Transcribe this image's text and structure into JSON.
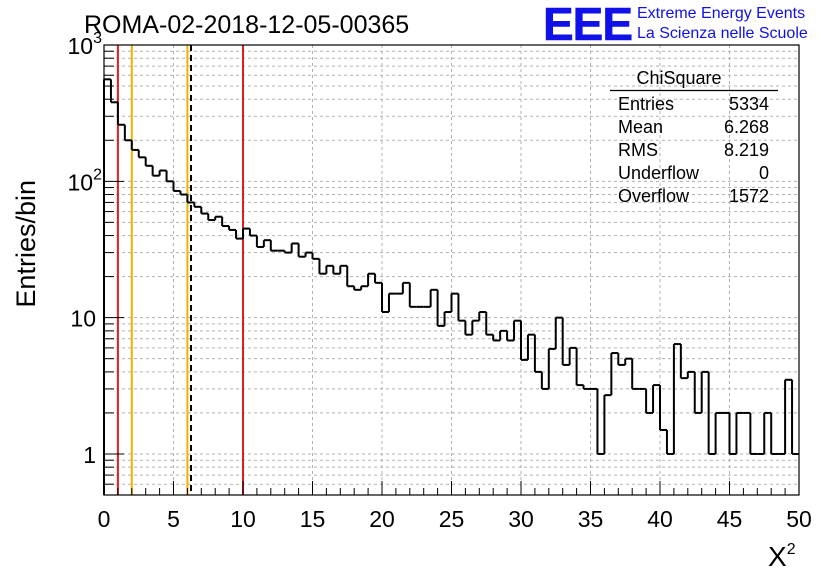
{
  "chart_data": {
    "type": "histogram",
    "title": "ROMA-02-2018-12-05-00365",
    "xlabel": "X",
    "xlabel_superscript": "2",
    "ylabel": "Entries/bin",
    "xlim": [
      0,
      50
    ],
    "ylim": [
      0.5,
      1000
    ],
    "yscale": "log",
    "grid": true,
    "bin_width": 0.5,
    "x_ticks": [
      "0",
      "5",
      "10",
      "15",
      "20",
      "25",
      "30",
      "35",
      "40",
      "45",
      "50"
    ],
    "y_ticks": [
      {
        "value": 1,
        "label": "1"
      },
      {
        "value": 10,
        "label": "10"
      },
      {
        "value": 100,
        "label": "10",
        "exp": "2"
      },
      {
        "value": 1000,
        "label": "10",
        "exp": "3"
      }
    ],
    "values": [
      560,
      380,
      260,
      200,
      170,
      150,
      130,
      110,
      120,
      100,
      85,
      80,
      70,
      65,
      58,
      52,
      55,
      47,
      44,
      38,
      45,
      40,
      33,
      37,
      31,
      31,
      30,
      35,
      28,
      30,
      27,
      21,
      24,
      21,
      24,
      17,
      16,
      17,
      21,
      18,
      11,
      15,
      15,
      18,
      12,
      12,
      12,
      16,
      8.7,
      11,
      15,
      9.5,
      7.5,
      9.5,
      11,
      7.5,
      6.8,
      8,
      6.8,
      9.5,
      4.9,
      7.5,
      4,
      3,
      5.9,
      10,
      4.5,
      6,
      3.2,
      3,
      3,
      1,
      2.7,
      5.5,
      4.5,
      5,
      3,
      3,
      2,
      3.2,
      1.5,
      1,
      6.4,
      3.6,
      4,
      2,
      4,
      1,
      2,
      2,
      1,
      2,
      2,
      1,
      1,
      2,
      1,
      1,
      3.5,
      1
    ],
    "reference_lines": [
      {
        "x": 1,
        "color": "#e02020",
        "style": "solid"
      },
      {
        "x": 2,
        "color": "#f0b400",
        "style": "solid"
      },
      {
        "x": 6,
        "color": "#f0b400",
        "style": "solid"
      },
      {
        "x": 6.26,
        "color": "#000000",
        "style": "dashed"
      },
      {
        "x": 10,
        "color": "#e02020",
        "style": "solid"
      }
    ],
    "stats_box": {
      "title": "ChiSquare",
      "rows": [
        {
          "label": "Entries",
          "value": "5334"
        },
        {
          "label": "Mean",
          "value": "6.268"
        },
        {
          "label": "RMS",
          "value": "8.219"
        },
        {
          "label": "Underflow",
          "value": "0"
        },
        {
          "label": "Overflow",
          "value": "1572"
        }
      ]
    }
  },
  "logo": {
    "letters": "EEE",
    "line1": "Extreme Energy Events",
    "line2": "La Scienza nelle Scuole",
    "color": "#1010e8"
  }
}
